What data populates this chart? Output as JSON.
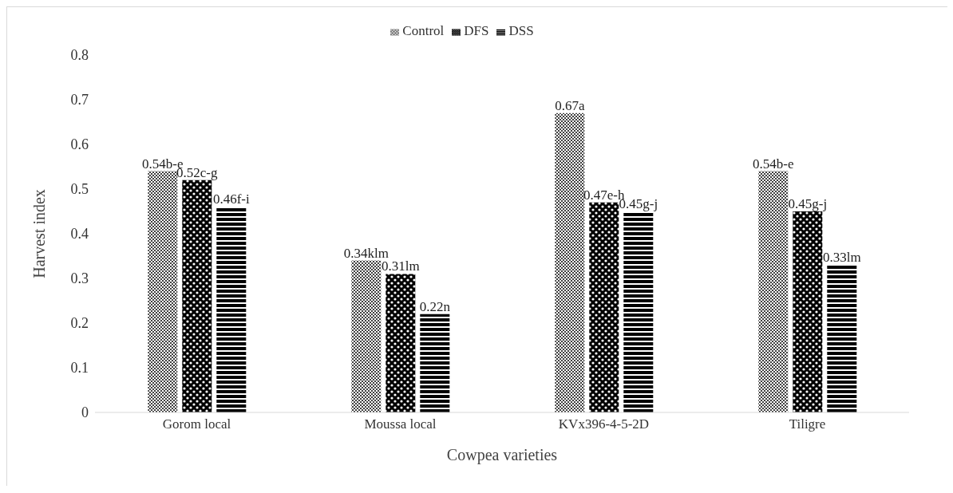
{
  "chart_data": {
    "type": "bar",
    "xlabel": "Cowpea varieties",
    "ylabel": "Harvest index",
    "categories": [
      "Gorom local",
      "Moussa local",
      "KVx396-4-5-2D",
      "Tiligre"
    ],
    "series": [
      {
        "name": "Control",
        "color": "#404040",
        "values": [
          0.54,
          0.34,
          0.67,
          0.54
        ],
        "value_labels": [
          "0.54b-e",
          "0.34klm",
          "0.67a",
          "0.54b-e"
        ]
      },
      {
        "name": "DFS",
        "color": "#000000",
        "values": [
          0.52,
          0.31,
          0.47,
          0.45
        ],
        "value_labels": [
          "0.52c-g",
          "0.31lm",
          "0.47e-h",
          "0.45g-j"
        ]
      },
      {
        "name": "DSS",
        "color": "#000000",
        "values": [
          0.46,
          0.22,
          0.45,
          0.33
        ],
        "value_labels": [
          "0.46f-i",
          "0.22n",
          "0.45g-j",
          "0.33lm"
        ]
      }
    ],
    "ylim": [
      0,
      0.8
    ],
    "yticks": [
      0,
      0.1,
      0.2,
      0.3,
      0.4,
      0.5,
      0.6,
      0.7,
      0.8
    ],
    "grid": false,
    "legend": "top"
  }
}
